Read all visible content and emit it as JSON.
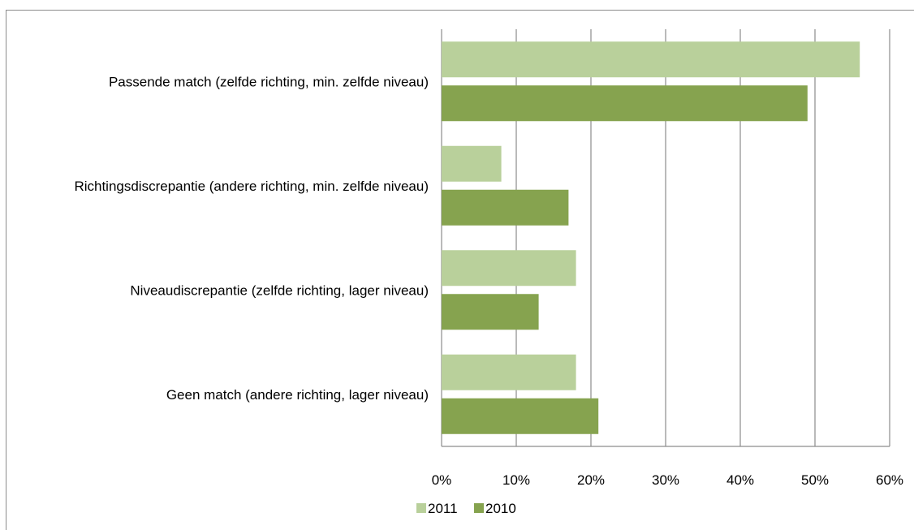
{
  "chart_data": {
    "type": "bar",
    "orientation": "horizontal",
    "categories": [
      "Passende match (zelfde richting, min. zelfde niveau)",
      "Richtingsdiscrepantie (andere richting, min. zelfde niveau)",
      "Niveaudiscrepantie (zelfde richting, lager niveau)",
      "Geen match (andere richting, lager niveau)"
    ],
    "series": [
      {
        "name": "2011",
        "color": "#b9d09b",
        "values": [
          56,
          8,
          18,
          18
        ]
      },
      {
        "name": "2010",
        "color": "#86a34f",
        "values": [
          49,
          17,
          13,
          21
        ]
      }
    ],
    "xlim": [
      0,
      60
    ],
    "x_ticks": [
      0,
      10,
      20,
      30,
      40,
      50,
      60
    ],
    "x_tick_labels": [
      "0%",
      "10%",
      "20%",
      "30%",
      "40%",
      "50%",
      "60%"
    ],
    "grid": "vertical",
    "legend_position": "bottom",
    "title": "",
    "xlabel": "",
    "ylabel": ""
  }
}
